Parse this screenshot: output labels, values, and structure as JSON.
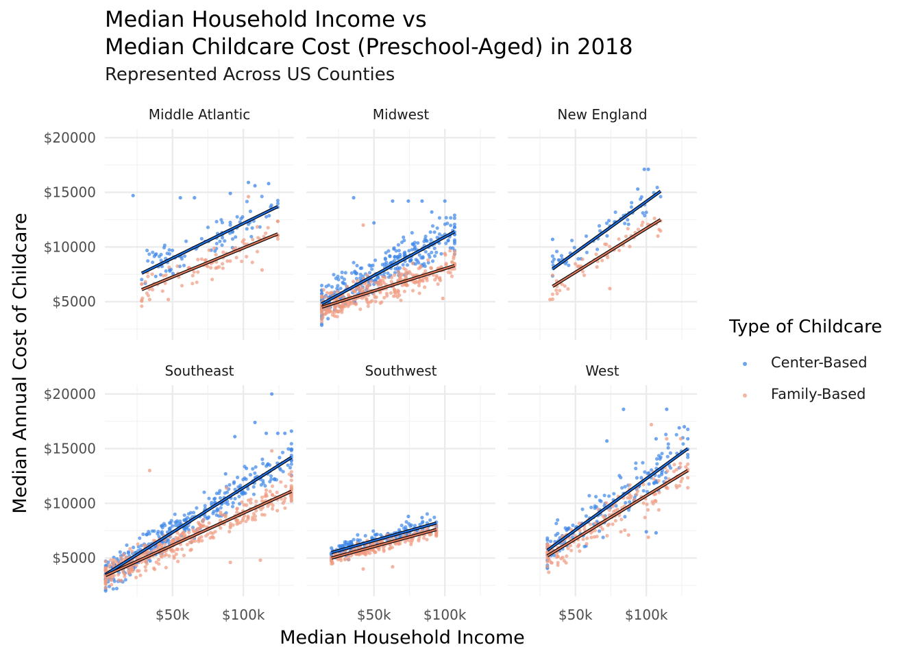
{
  "chart_data": {
    "type": "scatter",
    "title_lines": [
      "Median Household Income vs",
      "Median Childcare Cost (Preschool-Aged) in 2018"
    ],
    "subtitle": "Represented Across US Counties",
    "xlabel": "Median Household Income",
    "ylabel": "Median Annual Cost of Childcare",
    "x_scale": "log10",
    "x_ticks": [
      {
        "value": 50000,
        "label": "$50k"
      },
      {
        "value": 100000,
        "label": "$100k"
      }
    ],
    "x_minor_ticks": [
      35355,
      70711,
      141421
    ],
    "x_range": [
      25800,
      164000
    ],
    "y_ticks": [
      {
        "value": 5000,
        "label": "$5000"
      },
      {
        "value": 10000,
        "label": "$10000"
      },
      {
        "value": 15000,
        "label": "$15000"
      },
      {
        "value": 20000,
        "label": "$20000"
      }
    ],
    "y_minor_ticks": [
      2500,
      7500,
      12500,
      17500
    ],
    "y_range": [
      1500,
      20800
    ],
    "grid": true,
    "legend": {
      "title": "Type of Childcare",
      "position": "right",
      "entries": [
        {
          "name": "Center-Based",
          "color": "#3d86e8"
        },
        {
          "name": "Family-Based",
          "color": "#ef9b80"
        }
      ]
    },
    "facets": [
      {
        "name": "Middle Atlantic",
        "series": [
          {
            "name": "Center-Based",
            "x_min": 37000,
            "x_max": 140000,
            "trend": [
              [
                37000,
                7600
              ],
              [
                140000,
                13700
              ]
            ],
            "point_count": 95,
            "spread": 1600,
            "highlights": [
              [
                34000,
                14700
              ],
              [
                105000,
                15900
              ],
              [
                128000,
                15800
              ],
              [
                88000,
                14900
              ],
              [
                54000,
                14500
              ],
              [
                62000,
                14500
              ],
              [
                112000,
                15600
              ]
            ]
          },
          {
            "name": "Family-Based",
            "x_min": 37000,
            "x_max": 140000,
            "trend": [
              [
                37000,
                6100
              ],
              [
                140000,
                11200
              ]
            ],
            "point_count": 90,
            "spread": 1300,
            "highlights": [
              [
                40000,
                5200
              ],
              [
                48000,
                5200
              ],
              [
                120000,
                7900
              ],
              [
                105000,
                14600
              ]
            ]
          }
        ]
      },
      {
        "name": "Midwest",
        "series": [
          {
            "name": "Center-Based",
            "x_min": 30000,
            "x_max": 110000,
            "trend": [
              [
                30000,
                4800
              ],
              [
                110000,
                11400
              ]
            ],
            "point_count": 300,
            "spread": 1900,
            "highlights": [
              [
                41000,
                14500
              ],
              [
                60000,
                14200
              ],
              [
                70000,
                14200
              ],
              [
                80000,
                14200
              ],
              [
                100000,
                14200
              ],
              [
                50000,
                12200
              ],
              [
                88000,
                13200
              ]
            ]
          },
          {
            "name": "Family-Based",
            "x_min": 30000,
            "x_max": 110000,
            "trend": [
              [
                30000,
                4500
              ],
              [
                110000,
                8300
              ]
            ],
            "point_count": 320,
            "spread": 1300,
            "highlights": [
              [
                45000,
                12000
              ],
              [
                100000,
                9400
              ],
              [
                98000,
                5300
              ]
            ]
          }
        ]
      },
      {
        "name": "New England",
        "series": [
          {
            "name": "Center-Based",
            "x_min": 40000,
            "x_max": 115000,
            "trend": [
              [
                40000,
                8000
              ],
              [
                115000,
                15100
              ]
            ],
            "point_count": 55,
            "spread": 1400,
            "highlights": [
              [
                98000,
                17100
              ],
              [
                102000,
                17100
              ],
              [
                92000,
                15300
              ],
              [
                40000,
                10700
              ]
            ]
          },
          {
            "name": "Family-Based",
            "x_min": 40000,
            "x_max": 115000,
            "trend": [
              [
                40000,
                6400
              ],
              [
                115000,
                12500
              ]
            ],
            "point_count": 55,
            "spread": 1200,
            "highlights": [
              [
                39000,
                5200
              ],
              [
                70000,
                6200
              ],
              [
                112000,
                11000
              ]
            ]
          }
        ]
      },
      {
        "name": "Southeast",
        "series": [
          {
            "name": "Center-Based",
            "x_min": 26000,
            "x_max": 160000,
            "trend": [
              [
                26000,
                3500
              ],
              [
                160000,
                14200
              ]
            ],
            "point_count": 360,
            "spread": 1500,
            "highlights": [
              [
                132000,
                20000
              ],
              [
                112000,
                17400
              ],
              [
                125000,
                16400
              ],
              [
                140000,
                16400
              ],
              [
                150000,
                16400
              ],
              [
                160000,
                16600
              ],
              [
                92000,
                16100
              ],
              [
                103000,
                13200
              ],
              [
                84000,
                12700
              ],
              [
                118000,
                12200
              ]
            ]
          },
          {
            "name": "Family-Based",
            "x_min": 26000,
            "x_max": 160000,
            "trend": [
              [
                26000,
                3400
              ],
              [
                160000,
                11100
              ]
            ],
            "point_count": 380,
            "spread": 1300,
            "highlights": [
              [
                40000,
                13000
              ],
              [
                132000,
                14800
              ],
              [
                160000,
                12500
              ],
              [
                125000,
                11200
              ],
              [
                85000,
                11400
              ],
              [
                88000,
                4600
              ],
              [
                118000,
                4800
              ]
            ]
          }
        ]
      },
      {
        "name": "Southwest",
        "series": [
          {
            "name": "Center-Based",
            "x_min": 33000,
            "x_max": 92000,
            "trend": [
              [
                33000,
                5500
              ],
              [
                92000,
                8200
              ]
            ],
            "point_count": 180,
            "spread": 800,
            "highlights": [
              [
                70000,
                8800
              ],
              [
                80000,
                8700
              ]
            ]
          },
          {
            "name": "Family-Based",
            "x_min": 33000,
            "x_max": 92000,
            "trend": [
              [
                33000,
                5000
              ],
              [
                92000,
                7600
              ]
            ],
            "point_count": 200,
            "spread": 700,
            "highlights": [
              [
                45000,
                4000
              ],
              [
                60000,
                4200
              ],
              [
                92000,
                7100
              ]
            ]
          }
        ]
      },
      {
        "name": "West",
        "series": [
          {
            "name": "Center-Based",
            "x_min": 38000,
            "x_max": 150000,
            "trend": [
              [
                38000,
                5700
              ],
              [
                150000,
                15000
              ]
            ],
            "point_count": 160,
            "spread": 1900,
            "highlights": [
              [
                122000,
                18600
              ],
              [
                80000,
                18600
              ],
              [
                138000,
                16900
              ],
              [
                145000,
                17000
              ],
              [
                150000,
                15900
              ],
              [
                110000,
                15900
              ],
              [
                68000,
                15700
              ],
              [
                100000,
                7400
              ],
              [
                110000,
                7300
              ]
            ]
          },
          {
            "name": "Family-Based",
            "x_min": 38000,
            "x_max": 150000,
            "trend": [
              [
                38000,
                5200
              ],
              [
                150000,
                13000
              ]
            ],
            "point_count": 170,
            "spread": 1700,
            "highlights": [
              [
                105000,
                17200
              ],
              [
                122000,
                15900
              ],
              [
                140000,
                15900
              ],
              [
                102000,
                6900
              ],
              [
                78000,
                7400
              ],
              [
                84000,
                7100
              ]
            ]
          }
        ]
      }
    ]
  }
}
